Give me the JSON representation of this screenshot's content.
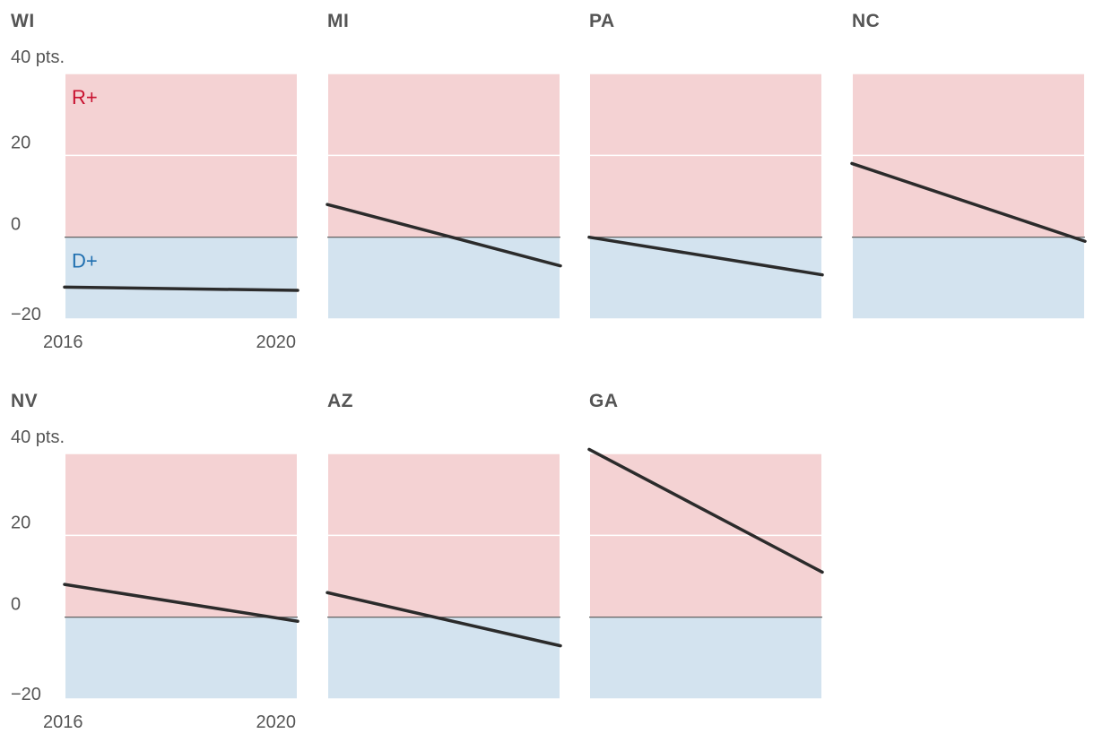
{
  "chart_data": {
    "type": "line",
    "xlabel_ticks": [
      "2016",
      "2020"
    ],
    "yaxis_top_label": "40 pts.",
    "ytick_labels": [
      "20",
      "0",
      "−20"
    ],
    "yticks": [
      40,
      20,
      0,
      -20
    ],
    "ylim": [
      -20,
      40
    ],
    "region_labels": {
      "rep": "R+",
      "dem": "D+"
    },
    "colors": {
      "rep_fill": "#f4d2d3",
      "dem_fill": "#d3e3ef",
      "line": "#2b2b2b",
      "zero": "#555555",
      "grid": "#ffffff"
    },
    "panels": [
      {
        "state": "WI",
        "x": [
          2016,
          2020
        ],
        "y": [
          -12.2,
          -13.0
        ]
      },
      {
        "state": "MI",
        "x": [
          2016,
          2020
        ],
        "y": [
          8.0,
          -7.0
        ]
      },
      {
        "state": "PA",
        "x": [
          2016,
          2020
        ],
        "y": [
          0.0,
          -9.2
        ]
      },
      {
        "state": "NC",
        "x": [
          2016,
          2020
        ],
        "y": [
          18.0,
          -1.0
        ]
      },
      {
        "state": "NV",
        "x": [
          2016,
          2020
        ],
        "y": [
          8.0,
          -1.0
        ]
      },
      {
        "state": "AZ",
        "x": [
          2016,
          2020
        ],
        "y": [
          6.0,
          -7.0
        ]
      },
      {
        "state": "GA",
        "x": [
          2016,
          2020
        ],
        "y": [
          41.0,
          11.0
        ]
      }
    ]
  }
}
